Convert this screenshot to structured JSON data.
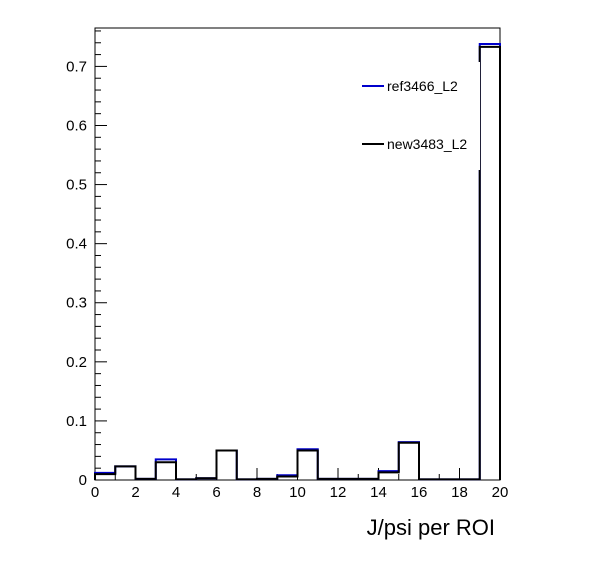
{
  "chart_data": {
    "type": "histogram",
    "title": "",
    "xlabel": "J/psi per ROI",
    "ylabel": "",
    "xlim": [
      0,
      20
    ],
    "ylim": [
      0,
      0.765
    ],
    "bin_edges": [
      0,
      1,
      2,
      3,
      4,
      5,
      6,
      7,
      8,
      9,
      10,
      11,
      12,
      13,
      14,
      15,
      16,
      17,
      18,
      19,
      20
    ],
    "x_ticks": [
      0,
      2,
      4,
      6,
      8,
      10,
      12,
      14,
      16,
      18,
      20
    ],
    "x_tick_labels": [
      "0",
      "2",
      "4",
      "6",
      "8",
      "10",
      "12",
      "14",
      "16",
      "18",
      "20"
    ],
    "y_ticks": [
      0,
      0.1,
      0.2,
      0.3,
      0.4,
      0.5,
      0.6,
      0.7
    ],
    "y_tick_labels": [
      "0",
      "0.1",
      "0.2",
      "0.3",
      "0.4",
      "0.5",
      "0.6",
      "0.7"
    ],
    "legend_position": "top-right",
    "grid": false,
    "series": [
      {
        "name": "ref3466_L2",
        "color": "#0000cc",
        "values": [
          0.012,
          0.023,
          0.002,
          0.035,
          0.001,
          0.003,
          0.05,
          0.001,
          0.002,
          0.008,
          0.052,
          0.002,
          0.002,
          0.002,
          0.015,
          0.064,
          0.001,
          0.001,
          0.001,
          0.738
        ]
      },
      {
        "name": "new3483_L2",
        "color": "#000000",
        "values": [
          0.01,
          0.023,
          0.002,
          0.03,
          0.001,
          0.003,
          0.05,
          0.001,
          0.002,
          0.006,
          0.05,
          0.002,
          0.002,
          0.002,
          0.013,
          0.063,
          0.001,
          0.001,
          0.001,
          0.733
        ]
      }
    ]
  }
}
